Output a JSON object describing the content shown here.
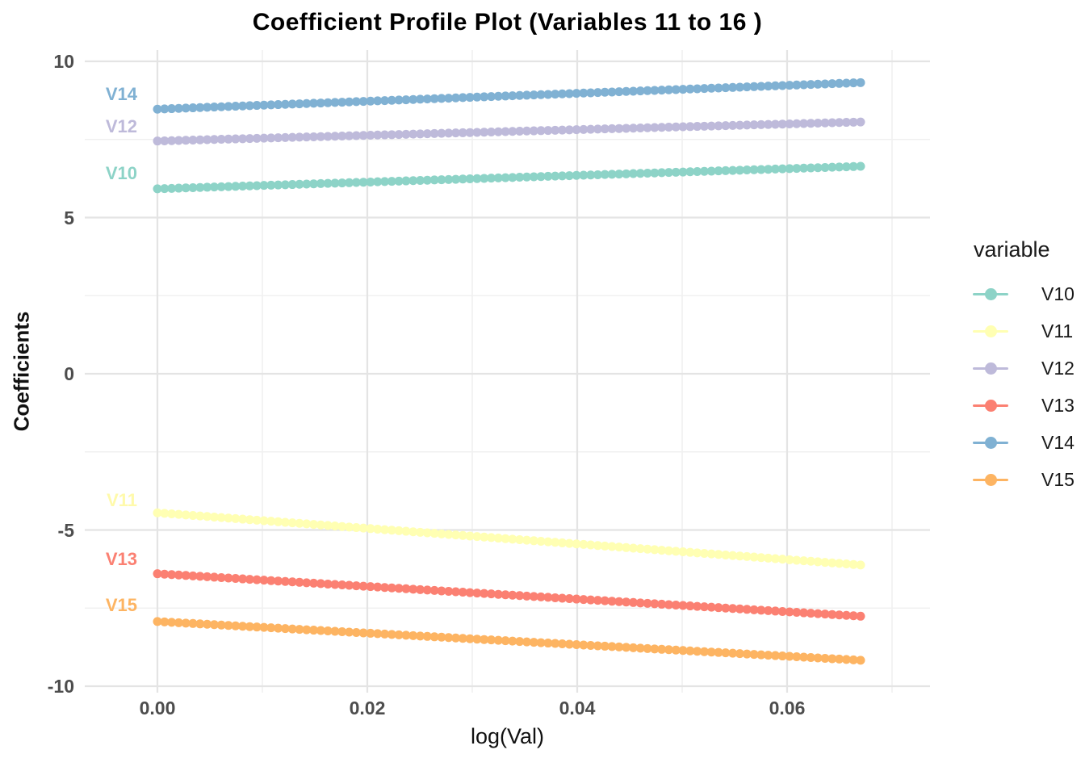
{
  "chart_data": {
    "type": "scatter",
    "title": "Coefficient Profile Plot (Variables 11 to 16 )",
    "xlabel": "log(Val)",
    "ylabel": "Coefficients",
    "legend_title": "variable",
    "legend_position": "right",
    "background": "#FFFFFF",
    "grid": true,
    "x_range": [
      0,
      0.067
    ],
    "xlim": [
      -0.0069,
      0.0736
    ],
    "ylim": [
      -10.2,
      10.36
    ],
    "x_major_ticks": {
      "labels": [
        "0.00",
        "0.02",
        "0.04",
        "0.06"
      ],
      "values": [
        0,
        0.02,
        0.04,
        0.06
      ]
    },
    "x_minor_ticks": [
      0.01,
      0.03,
      0.05,
      0.07
    ],
    "y_major_ticks": {
      "labels": [
        "10",
        "5",
        "0",
        "-5",
        "-10"
      ],
      "values": [
        10,
        5,
        0,
        -5,
        -10
      ]
    },
    "y_minor_ticks": [
      7.5,
      2.5,
      -2.5,
      -7.5
    ],
    "points_per_series": 100,
    "trend": "linear",
    "series": [
      {
        "name": "V10",
        "color": "#8DD3C7",
        "y_start": 5.92,
        "y_end": 6.64
      },
      {
        "name": "V11",
        "color": "#FFFFB3",
        "y_start": -4.45,
        "y_end": -6.12
      },
      {
        "name": "V12",
        "color": "#BEBADA",
        "y_start": 7.45,
        "y_end": 8.06
      },
      {
        "name": "V13",
        "color": "#FB8072",
        "y_start": -6.4,
        "y_end": -7.76
      },
      {
        "name": "V14",
        "color": "#80B1D3",
        "y_start": 8.47,
        "y_end": 9.32
      },
      {
        "name": "V15",
        "color": "#FDB462",
        "y_start": -7.93,
        "y_end": -9.17
      }
    ],
    "annotations": [
      {
        "text": "V14",
        "color": "#80B1D3",
        "y": 8.94
      },
      {
        "text": "V12",
        "color": "#BEBADA",
        "y": 7.91
      },
      {
        "text": "V10",
        "color": "#8DD3C7",
        "y": 6.41
      },
      {
        "text": "V11",
        "color": "#FFFAAB",
        "y": -4.06
      },
      {
        "text": "V13",
        "color": "#FB8072",
        "y": -5.94
      },
      {
        "text": "V15",
        "color": "#FDB462",
        "y": -7.42
      }
    ],
    "legend_entries": [
      "V10",
      "V11",
      "V12",
      "V13",
      "V14",
      "V15"
    ]
  },
  "style_colors": {
    "axis_text": "#4D4D4D",
    "text": "#1A1A1A",
    "grid_major": "#E4E4E4",
    "grid_minor": "#F0F0F0",
    "point_radius": 5.5
  }
}
